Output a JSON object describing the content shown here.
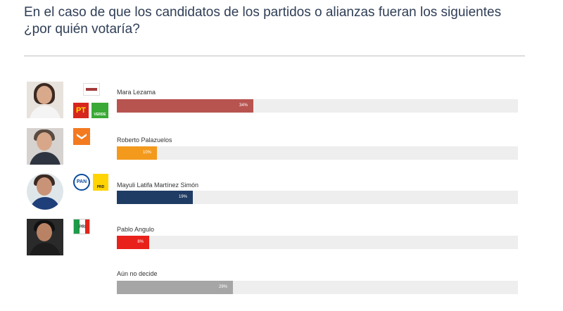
{
  "title": "En el caso de que los candidatos de los partidos o alianzas fueran los siguientes ¿por quién votaría?",
  "party_logos": {
    "pt": "PT",
    "verde": "VERDE",
    "pan": "PAN",
    "prd": "PRD",
    "pri": "PRI"
  },
  "chart_data": {
    "type": "bar",
    "orientation": "horizontal",
    "title": "",
    "xlabel": "",
    "ylabel": "",
    "xlim": [
      0,
      100
    ],
    "grid": false,
    "categories": [
      "Mara Lezama",
      "Roberto Palazuelos",
      "Mayuli Latifa Martínez Simón",
      "Pablo Angulo",
      "Aún no decide"
    ],
    "values": [
      34,
      10,
      19,
      8,
      29
    ],
    "value_labels": [
      "34%",
      "10%",
      "19%",
      "8%",
      "29%"
    ],
    "colors": [
      "#b85450",
      "#f39a1d",
      "#1f3c64",
      "#e8221b",
      "#a6a6a6"
    ]
  }
}
